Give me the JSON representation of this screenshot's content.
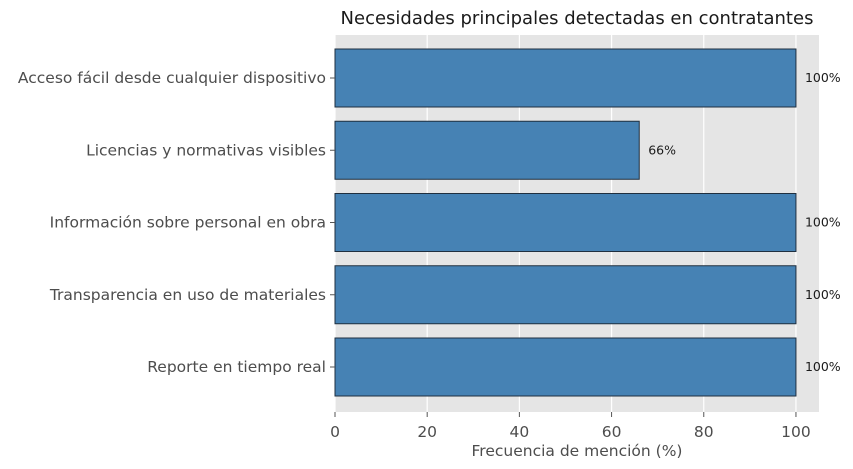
{
  "chart_data": {
    "type": "bar",
    "orientation": "horizontal",
    "title": "Necesidades principales detectadas en contratantes",
    "xlabel": "Frecuencia de mención (%)",
    "ylabel": "",
    "categories": [
      "Acceso fácil desde cualquier dispositivo",
      "Licencias y normativas visibles",
      "Información sobre personal en obra",
      "Transparencia en uso de materiales",
      "Reporte en tiempo real"
    ],
    "values": [
      100,
      66,
      100,
      100,
      100
    ],
    "data_labels": [
      "100%",
      "66%",
      "100%",
      "100%",
      "100%"
    ],
    "xlim": [
      0,
      105
    ],
    "xticks": [
      0,
      20,
      40,
      60,
      80,
      100
    ],
    "xtick_labels": [
      "0",
      "20",
      "40",
      "60",
      "80",
      "100"
    ],
    "grid": true,
    "legend": false,
    "colors": {
      "bar_fill": "#4682b4",
      "bar_edge": "#1f2f3f",
      "plot_bg": "#e5e5e5",
      "grid": "#ffffff"
    }
  }
}
